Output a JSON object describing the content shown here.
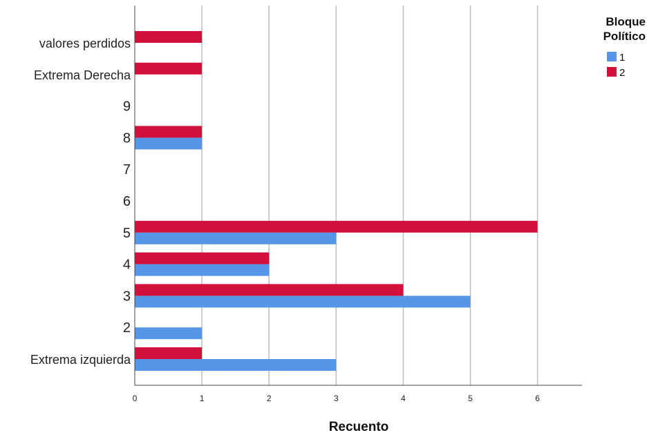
{
  "chart_data": {
    "type": "bar",
    "orientation": "horizontal",
    "categories": [
      "Extrema izquierda",
      "2",
      "3",
      "4",
      "5",
      "6",
      "7",
      "8",
      "9",
      "Extrema Derecha",
      "valores perdidos"
    ],
    "series": [
      {
        "name": "1",
        "color": "#5596e6",
        "values": [
          3,
          1,
          5,
          2,
          3,
          0,
          0,
          1,
          0,
          0,
          0
        ]
      },
      {
        "name": "2",
        "color": "#d1103b",
        "values": [
          1,
          0,
          4,
          2,
          6,
          0,
          0,
          1,
          0,
          1,
          1
        ]
      }
    ],
    "xlabel": "Recuento",
    "ylabel": "",
    "xlim": [
      0,
      6.65
    ],
    "xticks": [
      0,
      1,
      2,
      3,
      4,
      5,
      6
    ],
    "grid": true,
    "legend": {
      "title_line1": "Bloque",
      "title_line2": "Político",
      "placement": "top-right"
    }
  }
}
